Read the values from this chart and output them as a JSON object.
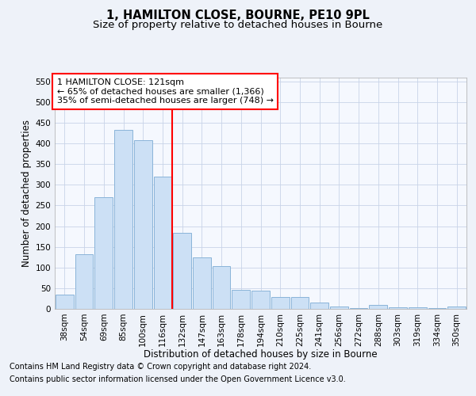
{
  "title1": "1, HAMILTON CLOSE, BOURNE, PE10 9PL",
  "title2": "Size of property relative to detached houses in Bourne",
  "xlabel": "Distribution of detached houses by size in Bourne",
  "ylabel": "Number of detached properties",
  "categories": [
    "38sqm",
    "54sqm",
    "69sqm",
    "85sqm",
    "100sqm",
    "116sqm",
    "132sqm",
    "147sqm",
    "163sqm",
    "178sqm",
    "194sqm",
    "210sqm",
    "225sqm",
    "241sqm",
    "256sqm",
    "272sqm",
    "288sqm",
    "303sqm",
    "319sqm",
    "334sqm",
    "350sqm"
  ],
  "values": [
    35,
    133,
    270,
    433,
    407,
    320,
    183,
    125,
    103,
    46,
    44,
    28,
    28,
    15,
    6,
    1,
    9,
    3,
    3,
    2,
    6
  ],
  "bar_color": "#cce0f5",
  "bar_edge_color": "#8ab4d8",
  "vline_x": 6,
  "vline_color": "red",
  "ylim": [
    0,
    560
  ],
  "yticks": [
    0,
    50,
    100,
    150,
    200,
    250,
    300,
    350,
    400,
    450,
    500,
    550
  ],
  "annotation_title": "1 HAMILTON CLOSE: 121sqm",
  "annotation_line1": "← 65% of detached houses are smaller (1,366)",
  "annotation_line2": "35% of semi-detached houses are larger (748) →",
  "annotation_box_color": "white",
  "annotation_box_edge_color": "red",
  "footer1": "Contains HM Land Registry data © Crown copyright and database right 2024.",
  "footer2": "Contains public sector information licensed under the Open Government Licence v3.0.",
  "background_color": "#eef2f9",
  "plot_bg_color": "#f5f8fe",
  "title1_fontsize": 10.5,
  "title2_fontsize": 9.5,
  "xlabel_fontsize": 8.5,
  "ylabel_fontsize": 8.5,
  "tick_fontsize": 7.5,
  "footer_fontsize": 7,
  "ann_fontsize": 8
}
